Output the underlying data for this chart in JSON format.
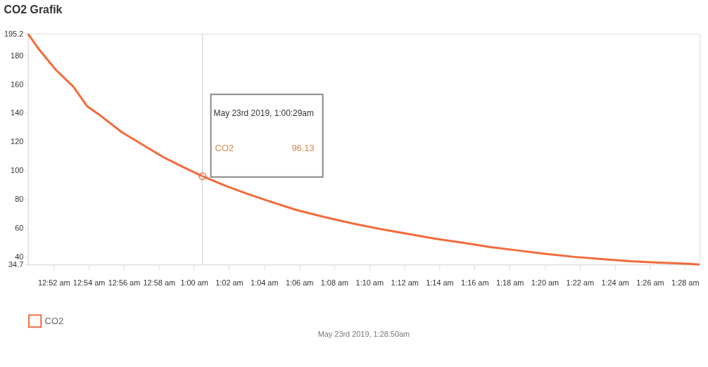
{
  "chart_data": {
    "type": "line",
    "title": "CO2 Grafik",
    "x": [
      "2019-05-23T00:50:32",
      "2019-05-23T00:51:08",
      "2019-05-23T00:52:07",
      "2019-05-23T00:53:07",
      "2019-05-23T00:53:54",
      "2019-05-23T00:54:42",
      "2019-05-23T00:55:53",
      "2019-05-23T00:57:05",
      "2019-05-23T00:58:16",
      "2019-05-23T00:59:28",
      "2019-05-23T01:00:29",
      "2019-05-23T01:01:50",
      "2019-05-23T01:03:02",
      "2019-05-23T01:04:13",
      "2019-05-23T01:05:49",
      "2019-05-23T01:07:24",
      "2019-05-23T01:08:59",
      "2019-05-23T01:10:34",
      "2019-05-23T01:12:10",
      "2019-05-23T01:13:45",
      "2019-05-23T01:15:20",
      "2019-05-23T01:16:55",
      "2019-05-23T01:18:31",
      "2019-05-23T01:20:06",
      "2019-05-23T01:21:41",
      "2019-05-23T01:23:16",
      "2019-05-23T01:24:51",
      "2019-05-23T01:26:27",
      "2019-05-23T01:28:02",
      "2019-05-23T01:28:50"
    ],
    "series": [
      {
        "name": "CO2",
        "color": "#f26b3a",
        "values": [
          195.2,
          184.9,
          170.2,
          158.5,
          144.9,
          138,
          126.8,
          118,
          109.3,
          102,
          96.13,
          89.3,
          83.9,
          79,
          72.7,
          67.8,
          63.4,
          59.5,
          56.1,
          52.7,
          49.8,
          46.8,
          44.4,
          42,
          40,
          38.5,
          37,
          36,
          35.3,
          34.7
        ]
      }
    ],
    "xlim": [
      "2019-05-23T00:50:32",
      "2019-05-23T01:28:50"
    ],
    "xticks": [
      {
        "value": "2019-05-23T00:52",
        "label": "12:52 am"
      },
      {
        "value": "2019-05-23T00:54",
        "label": "12:54 am"
      },
      {
        "value": "2019-05-23T00:56",
        "label": "12:56 am"
      },
      {
        "value": "2019-05-23T00:58",
        "label": "12:58 am"
      },
      {
        "value": "2019-05-23T01:00",
        "label": "1:00 am"
      },
      {
        "value": "2019-05-23T01:02",
        "label": "1:02 am"
      },
      {
        "value": "2019-05-23T01:04",
        "label": "1:04 am"
      },
      {
        "value": "2019-05-23T01:06",
        "label": "1:06 am"
      },
      {
        "value": "2019-05-23T01:08",
        "label": "1:08 am"
      },
      {
        "value": "2019-05-23T01:10",
        "label": "1:10 am"
      },
      {
        "value": "2019-05-23T01:12",
        "label": "1:12 am"
      },
      {
        "value": "2019-05-23T01:14",
        "label": "1:14 am"
      },
      {
        "value": "2019-05-23T01:16",
        "label": "1:16 am"
      },
      {
        "value": "2019-05-23T01:18",
        "label": "1:18 am"
      },
      {
        "value": "2019-05-23T01:20",
        "label": "1:20 am"
      },
      {
        "value": "2019-05-23T01:22",
        "label": "1:22 am"
      },
      {
        "value": "2019-05-23T01:24",
        "label": "1:24 am"
      },
      {
        "value": "2019-05-23T01:26",
        "label": "1:26 am"
      },
      {
        "value": "2019-05-23T01:28",
        "label": "1:28 am"
      }
    ],
    "ylim": [
      34.7,
      195.2
    ],
    "yticks": [
      34.7,
      40,
      60,
      80,
      100,
      120,
      140,
      160,
      180,
      195.2
    ],
    "ref_lines": [
      {
        "axis": "x",
        "value": "2019-05-23T01:00:29",
        "color": "#cccccc"
      }
    ],
    "annotations": [
      "May 23rd 2019, 1:00:29am",
      "96.13",
      "May 23rd 2019, 1:28:50am"
    ],
    "grid": false,
    "legend": "bottom",
    "marker": "none",
    "line_style": "solid"
  }
}
